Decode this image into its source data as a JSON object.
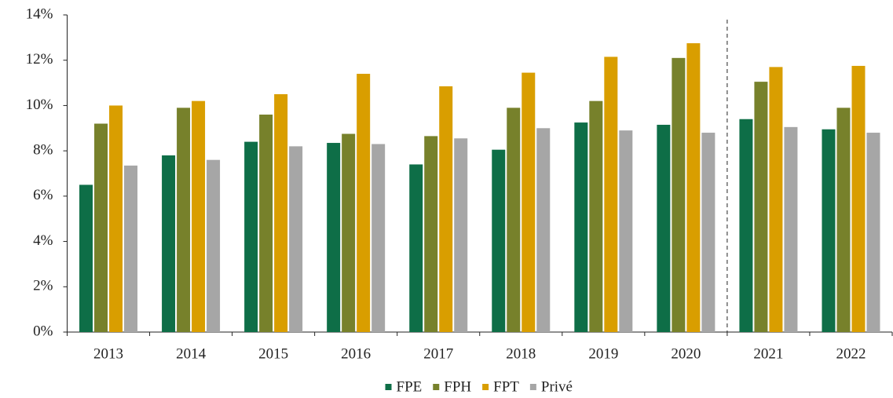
{
  "chart_data": {
    "type": "bar",
    "categories": [
      "2013",
      "2014",
      "2015",
      "2016",
      "2017",
      "2018",
      "2019",
      "2020",
      "2021",
      "2022"
    ],
    "series": [
      {
        "name": "FPE",
        "color": "#0e6e47",
        "values": [
          6.5,
          7.8,
          8.4,
          8.35,
          7.4,
          8.05,
          9.25,
          9.15,
          9.4,
          8.95
        ]
      },
      {
        "name": "FPH",
        "color": "#77812b",
        "values": [
          9.2,
          9.9,
          9.6,
          8.75,
          8.65,
          9.9,
          10.2,
          12.1,
          11.05,
          9.9
        ]
      },
      {
        "name": "FPT",
        "color": "#d99e00",
        "values": [
          10.0,
          10.2,
          10.5,
          11.4,
          10.85,
          11.45,
          12.15,
          12.75,
          11.7,
          11.75
        ]
      },
      {
        "name": "Privé",
        "color": "#a6a6a6",
        "values": [
          7.35,
          7.6,
          8.2,
          8.3,
          8.55,
          9.0,
          8.9,
          8.8,
          9.05,
          8.8
        ]
      }
    ],
    "ylim": [
      0,
      14
    ],
    "yticks": [
      {
        "value": 0,
        "label": "0%"
      },
      {
        "value": 2,
        "label": "2%"
      },
      {
        "value": 4,
        "label": "4%"
      },
      {
        "value": 6,
        "label": "6%"
      },
      {
        "value": 8,
        "label": "8%"
      },
      {
        "value": 10,
        "label": "10%"
      },
      {
        "value": 12,
        "label": "12%"
      },
      {
        "value": 14,
        "label": "14%"
      }
    ],
    "grid": false,
    "legend": "bottom"
  }
}
